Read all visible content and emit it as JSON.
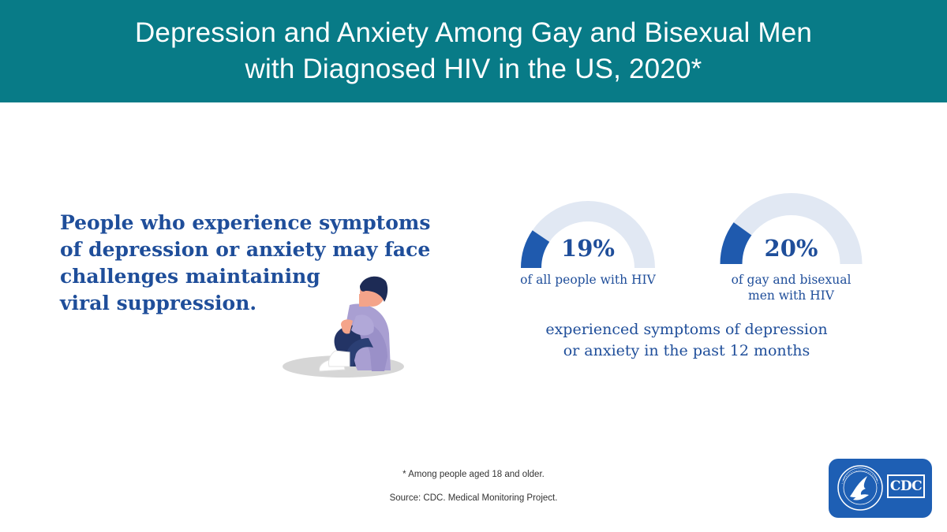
{
  "header": {
    "title_line1": "Depression and Anxiety Among Gay and Bisexual Men",
    "title_line2": "with Diagnosed HIV in the US, 2020*"
  },
  "lead": {
    "line1": "People who experience symptoms",
    "line2": "of depression or anxiety may face",
    "line3": "challenges maintaining",
    "line4": "viral suppression."
  },
  "chart_data": {
    "type": "gauge",
    "max": 100,
    "unit": "%",
    "series": [
      {
        "value": 19,
        "display": "19%",
        "label_line1": "of all people with HIV",
        "label_line2": ""
      },
      {
        "value": 20,
        "display": "20%",
        "label_line1": "of gay and bisexual",
        "label_line2": "men with HIV"
      }
    ],
    "caption_line1": "experienced symptoms of depression",
    "caption_line2": "or anxiety in the past 12 months"
  },
  "colors": {
    "header_bg": "#087b87",
    "text_blue": "#1f4e9a",
    "gauge_fill": "#1f5aae",
    "gauge_track": "#e1e8f3",
    "logo_bg": "#1e5fb4"
  },
  "footnote": "* Among people aged 18 and older.",
  "source": "Source: CDC. Medical Monitoring Project.",
  "logo": {
    "icon": "hhs-eagle-seal-icon",
    "seal_text": "DEPARTMENT OF HEALTH & HUMAN SERVICES USA",
    "cdc_text": "CDC"
  }
}
